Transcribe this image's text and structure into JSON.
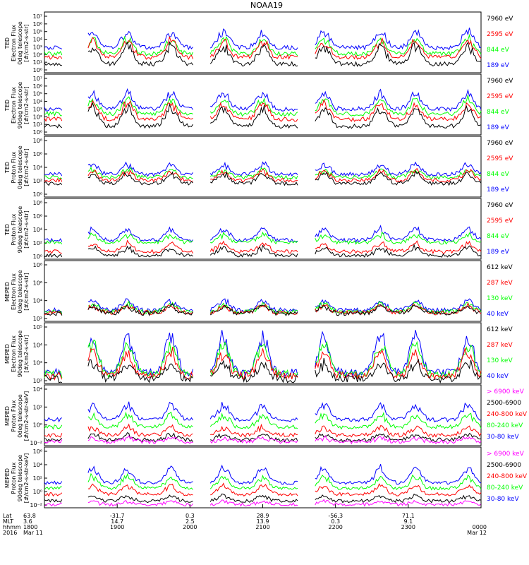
{
  "title": "NOAA19",
  "colors": {
    "black": "#000000",
    "red": "#ff0000",
    "green": "#00ff00",
    "blue": "#0000ff",
    "magenta": "#ff00ff"
  },
  "chart_data": {
    "type": "line",
    "time_axis": {
      "start": "2016-03-11 18:00",
      "end": "2016-03-12 00:00",
      "row_labels": [
        "Lat",
        "MLT",
        "hhmm",
        "2016"
      ],
      "ticks": [
        {
          "t": 0.0,
          "lat": "63.8",
          "mlt": "3.6",
          "hhmm": "1800",
          "date": "Mar 11"
        },
        {
          "t": 0.1667,
          "lat": "-31.7",
          "mlt": "14.7",
          "hhmm": "1900",
          "date": ""
        },
        {
          "t": 0.3333,
          "lat": "0.3",
          "mlt": "2.5",
          "hhmm": "2000",
          "date": ""
        },
        {
          "t": 0.5,
          "lat": "28.9",
          "mlt": "13.9",
          "hhmm": "2100",
          "date": ""
        },
        {
          "t": 0.6667,
          "lat": "-56.3",
          "mlt": "0.3",
          "hhmm": "2200",
          "date": ""
        },
        {
          "t": 0.8333,
          "lat": "71.1",
          "mlt": "9.1",
          "hhmm": "2300",
          "date": ""
        },
        {
          "t": 1.0,
          "lat": "",
          "mlt": "",
          "hhmm": "0000",
          "date": "Mar 12"
        }
      ]
    },
    "panels": [
      {
        "ylabel": [
          "TED",
          "Electron Flux",
          "0deg telescope",
          "[#/cm2-s-str]"
        ],
        "yticks": [
          "10⁷",
          "10⁶",
          "10⁵",
          "10⁴",
          "10³",
          "10²",
          "10¹",
          "10⁰"
        ],
        "ylim_exp": [
          0,
          7
        ],
        "series": [
          {
            "name": "7960 eV",
            "color": "black",
            "level": 1.0,
            "var": 2.5,
            "seed": 1
          },
          {
            "name": "2595 eV",
            "color": "red",
            "level": 1.8,
            "var": 2.2,
            "seed": 2
          },
          {
            "name": "844 eV",
            "color": "green",
            "level": 2.2,
            "var": 2.0,
            "seed": 3
          },
          {
            "name": "189 eV",
            "color": "blue",
            "level": 2.9,
            "var": 2.2,
            "seed": 4
          }
        ]
      },
      {
        "ylabel": [
          "TED",
          "Electron Flux",
          "90deg telescope",
          "[#/cm2-s-str]"
        ],
        "yticks": [
          "10⁷",
          "10⁶",
          "10⁵",
          "10⁴",
          "10³",
          "10²",
          "10¹",
          "10⁰"
        ],
        "ylim_exp": [
          0,
          7
        ],
        "series": [
          {
            "name": "7960 eV",
            "color": "black",
            "level": 1.0,
            "var": 2.5,
            "seed": 5
          },
          {
            "name": "2595 eV",
            "color": "red",
            "level": 1.8,
            "var": 2.2,
            "seed": 6
          },
          {
            "name": "844 eV",
            "color": "green",
            "level": 2.4,
            "var": 2.0,
            "seed": 7
          },
          {
            "name": "189 eV",
            "color": "blue",
            "level": 3.0,
            "var": 2.2,
            "seed": 8
          }
        ]
      },
      {
        "ylabel": [
          "TED",
          "Proton Flux",
          "0deg telescope",
          "[#/cm2-s-str]"
        ],
        "yticks": [
          "10⁸",
          "10⁶",
          "10⁴",
          "10²",
          "10⁰"
        ],
        "ylim_exp": [
          0,
          8
        ],
        "series": [
          {
            "name": "7960 eV",
            "color": "black",
            "level": 1.8,
            "var": 1.5,
            "seed": 9
          },
          {
            "name": "2595 eV",
            "color": "red",
            "level": 2.2,
            "var": 1.5,
            "seed": 10
          },
          {
            "name": "844 eV",
            "color": "green",
            "level": 2.6,
            "var": 1.2,
            "seed": 11
          },
          {
            "name": "189 eV",
            "color": "blue",
            "level": 3.0,
            "var": 1.6,
            "seed": 12
          }
        ]
      },
      {
        "ylabel": [
          "TED",
          "Proton Flux",
          "90deg telescope",
          "[#/cm2-s-str]"
        ],
        "yticks": [
          "10⁸",
          "10⁶",
          "10⁴",
          "10²",
          "10⁰"
        ],
        "ylim_exp": [
          0,
          8
        ],
        "series": [
          {
            "name": "7960 eV",
            "color": "black",
            "level": 0.5,
            "var": 1.2,
            "seed": 13
          },
          {
            "name": "2595 eV",
            "color": "red",
            "level": 1.0,
            "var": 1.3,
            "seed": 14
          },
          {
            "name": "844 eV",
            "color": "green",
            "level": 2.2,
            "var": 1.2,
            "seed": 15
          },
          {
            "name": "189 eV",
            "color": "blue",
            "level": 2.5,
            "var": 1.8,
            "seed": 16
          }
        ]
      },
      {
        "ylabel": [
          "MEPED",
          "Electron Flux",
          "0deg telescope",
          "[#/cm2-s-str]"
        ],
        "yticks": [
          "10⁸",
          "10⁶",
          "10⁴",
          "10²"
        ],
        "ylim_exp": [
          1.5,
          8.5
        ],
        "series": [
          {
            "name": "612 keV",
            "color": "black",
            "level": 2.4,
            "var": 1.0,
            "seed": 17
          },
          {
            "name": "287 keV",
            "color": "red",
            "level": 2.5,
            "var": 1.0,
            "seed": 18
          },
          {
            "name": "130 keV",
            "color": "green",
            "level": 2.6,
            "var": 1.1,
            "seed": 19
          },
          {
            "name": "40 keV",
            "color": "blue",
            "level": 2.8,
            "var": 1.3,
            "seed": 20
          }
        ]
      },
      {
        "ylabel": [
          "MEPED",
          "Electron Flux",
          "90deg telescope",
          "[#/cm2-s-str]"
        ],
        "yticks": [
          "10⁵",
          "10⁴",
          "10³",
          "10²"
        ],
        "ylim_exp": [
          1.8,
          5.7
        ],
        "series": [
          {
            "name": "612 keV",
            "color": "black",
            "level": 2.1,
            "var": 1.2,
            "seed": 21
          },
          {
            "name": "287 keV",
            "color": "red",
            "level": 2.3,
            "var": 1.8,
            "seed": 22
          },
          {
            "name": "130 keV",
            "color": "green",
            "level": 2.4,
            "var": 2.4,
            "seed": 23
          },
          {
            "name": "40 keV",
            "color": "blue",
            "level": 2.5,
            "var": 2.8,
            "seed": 24
          }
        ]
      },
      {
        "ylabel": [
          "MEPED",
          "Proton Flux",
          "0deg telescope",
          "[#/cm2-s-str-keV]"
        ],
        "yticks": [
          "10⁴",
          "10²",
          "10⁰",
          "10⁻²"
        ],
        "ylim_exp": [
          -2.5,
          5
        ],
        "series": [
          {
            "name": "> 6900 keV",
            "color": "magenta",
            "level": -2.0,
            "var": 0.5,
            "seed": 25
          },
          {
            "name": "2500-6900",
            "color": "black",
            "level": -1.8,
            "var": 0.8,
            "seed": 26
          },
          {
            "name": "240-800 keV",
            "color": "red",
            "level": -1.2,
            "var": 1.2,
            "seed": 27
          },
          {
            "name": "80-240 keV",
            "color": "green",
            "level": -0.2,
            "var": 1.8,
            "seed": 28
          },
          {
            "name": "30-80 keV",
            "color": "blue",
            "level": 0.7,
            "var": 2.2,
            "seed": 29
          }
        ]
      },
      {
        "ylabel": [
          "MEPED",
          "Proton Flux",
          "90deg telescope",
          "[#/cm2-s-str-keV]"
        ],
        "yticks": [
          "10⁶",
          "10⁴",
          "10²",
          "10⁰",
          "10⁻²"
        ],
        "ylim_exp": [
          -2.5,
          6.5
        ],
        "series": [
          {
            "name": "> 6900 keV",
            "color": "magenta",
            "level": -2.0,
            "var": 0.5,
            "seed": 30
          },
          {
            "name": "2500-6900",
            "color": "black",
            "level": -1.5,
            "var": 0.9,
            "seed": 31
          },
          {
            "name": "240-800 keV",
            "color": "red",
            "level": -0.5,
            "var": 1.5,
            "seed": 32
          },
          {
            "name": "80-240 keV",
            "color": "green",
            "level": 0.4,
            "var": 2.0,
            "seed": 33
          },
          {
            "name": "30-80 keV",
            "color": "blue",
            "level": 1.2,
            "var": 2.6,
            "seed": 34
          }
        ]
      }
    ]
  }
}
